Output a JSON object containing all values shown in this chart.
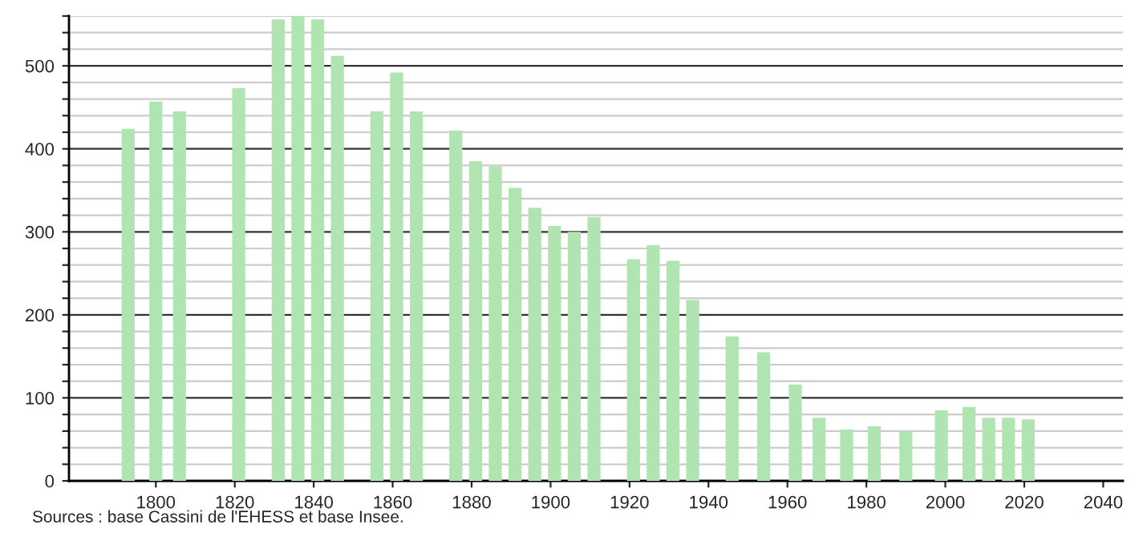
{
  "chart_data": {
    "type": "bar",
    "x": [
      1793,
      1800,
      1806,
      1821,
      1831,
      1836,
      1841,
      1846,
      1856,
      1861,
      1866,
      1876,
      1881,
      1886,
      1891,
      1896,
      1901,
      1906,
      1911,
      1921,
      1926,
      1931,
      1936,
      1946,
      1954,
      1962,
      1968,
      1975,
      1982,
      1990,
      1999,
      2006,
      2011,
      2016,
      2021
    ],
    "values": [
      424,
      457,
      445,
      473,
      556,
      560,
      556,
      512,
      445,
      492,
      445,
      422,
      385,
      379,
      353,
      329,
      307,
      300,
      318,
      267,
      284,
      265,
      218,
      174,
      155,
      116,
      76,
      62,
      66,
      60,
      85,
      89,
      76,
      76,
      74
    ],
    "color": "#b0e4b0",
    "xlim": [
      1778,
      2045
    ],
    "xticks": [
      1800,
      1820,
      1840,
      1860,
      1880,
      1900,
      1920,
      1940,
      1960,
      1980,
      2000,
      2020,
      2040
    ],
    "ylim": [
      0,
      560
    ],
    "yticks": [
      0,
      {
        "value": 20,
        "label": null
      },
      {
        "value": 40,
        "label": null
      },
      {
        "value": 60,
        "label": null
      },
      {
        "value": 80,
        "label": null
      },
      100,
      {
        "value": 120,
        "label": null
      },
      {
        "value": 140,
        "label": null
      },
      {
        "value": 160,
        "label": null
      },
      {
        "value": 180,
        "label": null
      },
      200,
      {
        "value": 220,
        "label": null
      },
      {
        "value": 240,
        "label": null
      },
      {
        "value": 260,
        "label": null
      },
      {
        "value": 280,
        "label": null
      },
      300,
      {
        "value": 320,
        "label": null
      },
      {
        "value": 340,
        "label": null
      },
      {
        "value": 360,
        "label": null
      },
      {
        "value": 380,
        "label": null
      },
      400,
      {
        "value": 420,
        "label": null
      },
      {
        "value": 440,
        "label": null
      },
      {
        "value": 460,
        "label": null
      },
      {
        "value": 480,
        "label": null
      },
      500,
      {
        "value": 520,
        "label": null
      },
      {
        "value": 540,
        "label": null
      },
      {
        "value": 560,
        "label": null
      }
    ],
    "grid": "y",
    "annotations": [
      "Sources : base Cassini de l'EHESS et base Insee."
    ]
  }
}
